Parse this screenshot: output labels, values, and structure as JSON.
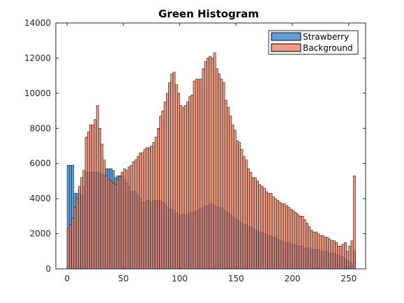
{
  "chart_data": {
    "type": "bar",
    "title": "Green Histogram",
    "xlabel": "",
    "ylabel": "",
    "xlim": [
      -10,
      265
    ],
    "ylim": [
      0,
      14000
    ],
    "x_ticks": [
      0,
      50,
      100,
      150,
      200,
      250
    ],
    "y_ticks": [
      0,
      2000,
      4000,
      6000,
      8000,
      10000,
      12000,
      14000
    ],
    "grid": false,
    "legend_position": "top-right",
    "bin_width": 2,
    "bin_starts": [
      0,
      2,
      4,
      6,
      8,
      10,
      12,
      14,
      16,
      18,
      20,
      22,
      24,
      26,
      28,
      30,
      32,
      34,
      36,
      38,
      40,
      42,
      44,
      46,
      48,
      50,
      52,
      54,
      56,
      58,
      60,
      62,
      64,
      66,
      68,
      70,
      72,
      74,
      76,
      78,
      80,
      82,
      84,
      86,
      88,
      90,
      92,
      94,
      96,
      98,
      100,
      102,
      104,
      106,
      108,
      110,
      112,
      114,
      116,
      118,
      120,
      122,
      124,
      126,
      128,
      130,
      132,
      134,
      136,
      138,
      140,
      142,
      144,
      146,
      148,
      150,
      152,
      154,
      156,
      158,
      160,
      162,
      164,
      166,
      168,
      170,
      172,
      174,
      176,
      178,
      180,
      182,
      184,
      186,
      188,
      190,
      192,
      194,
      196,
      198,
      200,
      202,
      204,
      206,
      208,
      210,
      212,
      214,
      216,
      218,
      220,
      222,
      224,
      226,
      228,
      230,
      232,
      234,
      236,
      238,
      240,
      242,
      244,
      246,
      248,
      250,
      252,
      254
    ],
    "series": [
      {
        "name": "Strawberry",
        "color": "#5b9bd5",
        "values": [
          5900,
          5900,
          5900,
          4300,
          4300,
          4300,
          4200,
          4700,
          5500,
          5500,
          5500,
          5500,
          5500,
          5500,
          5500,
          5400,
          5400,
          5700,
          5700,
          5700,
          5600,
          5200,
          5300,
          5300,
          5300,
          5100,
          4900,
          4700,
          4400,
          4400,
          4400,
          4200,
          4000,
          3800,
          3800,
          3900,
          3900,
          3800,
          3900,
          3900,
          3900,
          3900,
          3800,
          3700,
          3500,
          3400,
          3400,
          3300,
          3200,
          3100,
          3100,
          3100,
          3100,
          3100,
          3200,
          3200,
          3300,
          3300,
          3400,
          3400,
          3500,
          3600,
          3600,
          3700,
          3700,
          3600,
          3500,
          3500,
          3500,
          3400,
          3300,
          3200,
          3100,
          3000,
          2900,
          2800,
          2700,
          2600,
          2500,
          2500,
          2400,
          2400,
          2300,
          2200,
          2200,
          2100,
          2100,
          2000,
          2000,
          1900,
          1900,
          1800,
          1800,
          1700,
          1600,
          1600,
          1500,
          1500,
          1500,
          1400,
          1400,
          1400,
          1300,
          1300,
          1300,
          1200,
          1200,
          1200,
          1100,
          1100,
          1100,
          1100,
          1000,
          1000,
          1000,
          1000,
          900,
          900,
          900,
          800,
          800,
          700,
          700,
          600,
          500,
          400,
          300,
          1000
        ]
      },
      {
        "name": "Background",
        "color": "#e8795c",
        "values": [
          2300,
          2500,
          2900,
          3500,
          4000,
          4700,
          5200,
          5600,
          7500,
          7800,
          8200,
          8200,
          8500,
          9300,
          8000,
          7100,
          6200,
          5300,
          5100,
          5000,
          4900,
          4800,
          5100,
          5300,
          5500,
          5700,
          5600,
          5800,
          5900,
          6100,
          6200,
          6400,
          6600,
          6600,
          6800,
          6900,
          6900,
          7000,
          7200,
          7500,
          8000,
          8700,
          9000,
          9500,
          10000,
          10600,
          11100,
          11200,
          10500,
          10000,
          9300,
          9200,
          9300,
          9500,
          9800,
          9900,
          10700,
          10800,
          10800,
          10800,
          11400,
          11800,
          12000,
          12100,
          12000,
          12300,
          11400,
          11100,
          10800,
          10600,
          9600,
          9200,
          8700,
          8200,
          7900,
          7300,
          7200,
          6800,
          6400,
          6200,
          5700,
          5500,
          5200,
          5200,
          5000,
          4800,
          4700,
          4600,
          4400,
          4300,
          4300,
          4100,
          4000,
          3900,
          3800,
          3700,
          3700,
          3600,
          3500,
          3400,
          3300,
          3200,
          3100,
          3000,
          3000,
          2800,
          2600,
          2400,
          2200,
          2100,
          2100,
          2000,
          1900,
          1900,
          1800,
          1800,
          1700,
          1600,
          1600,
          1500,
          1300,
          1300,
          1400,
          1500,
          1000,
          1300,
          1600,
          5300
        ]
      }
    ]
  }
}
